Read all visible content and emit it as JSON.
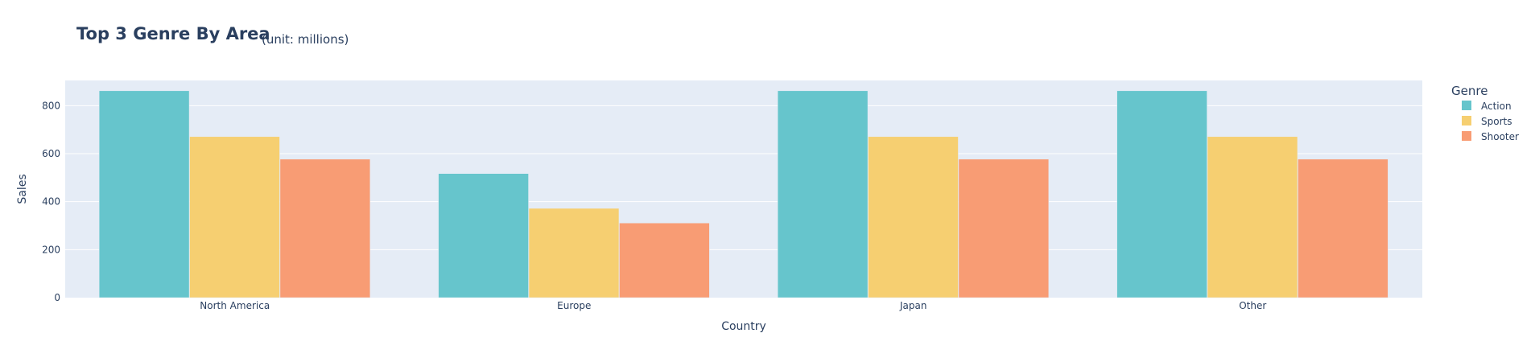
{
  "chart_data": {
    "type": "bar",
    "title": "Top 3 Genre By Area",
    "subtitle": "(unit: millions)",
    "xlabel": "Country",
    "ylabel": "Sales",
    "categories": [
      "North America",
      "Europe",
      "Japan",
      "Other"
    ],
    "series": [
      {
        "name": "Action",
        "values": [
          862,
          517,
          862,
          862
        ],
        "color": "#66c5cc"
      },
      {
        "name": "Sports",
        "values": [
          671,
          372,
          671,
          671
        ],
        "color": "#f6cf71"
      },
      {
        "name": "Shooter",
        "values": [
          577,
          311,
          577,
          577
        ],
        "color": "#f89c74"
      }
    ],
    "ylim": [
      0,
      905
    ],
    "yticks": [
      0,
      200,
      400,
      600,
      800
    ],
    "grid": true,
    "plot_bgcolor": "#e5ecf6",
    "legend": {
      "title": "Genre",
      "placement": "right"
    }
  }
}
